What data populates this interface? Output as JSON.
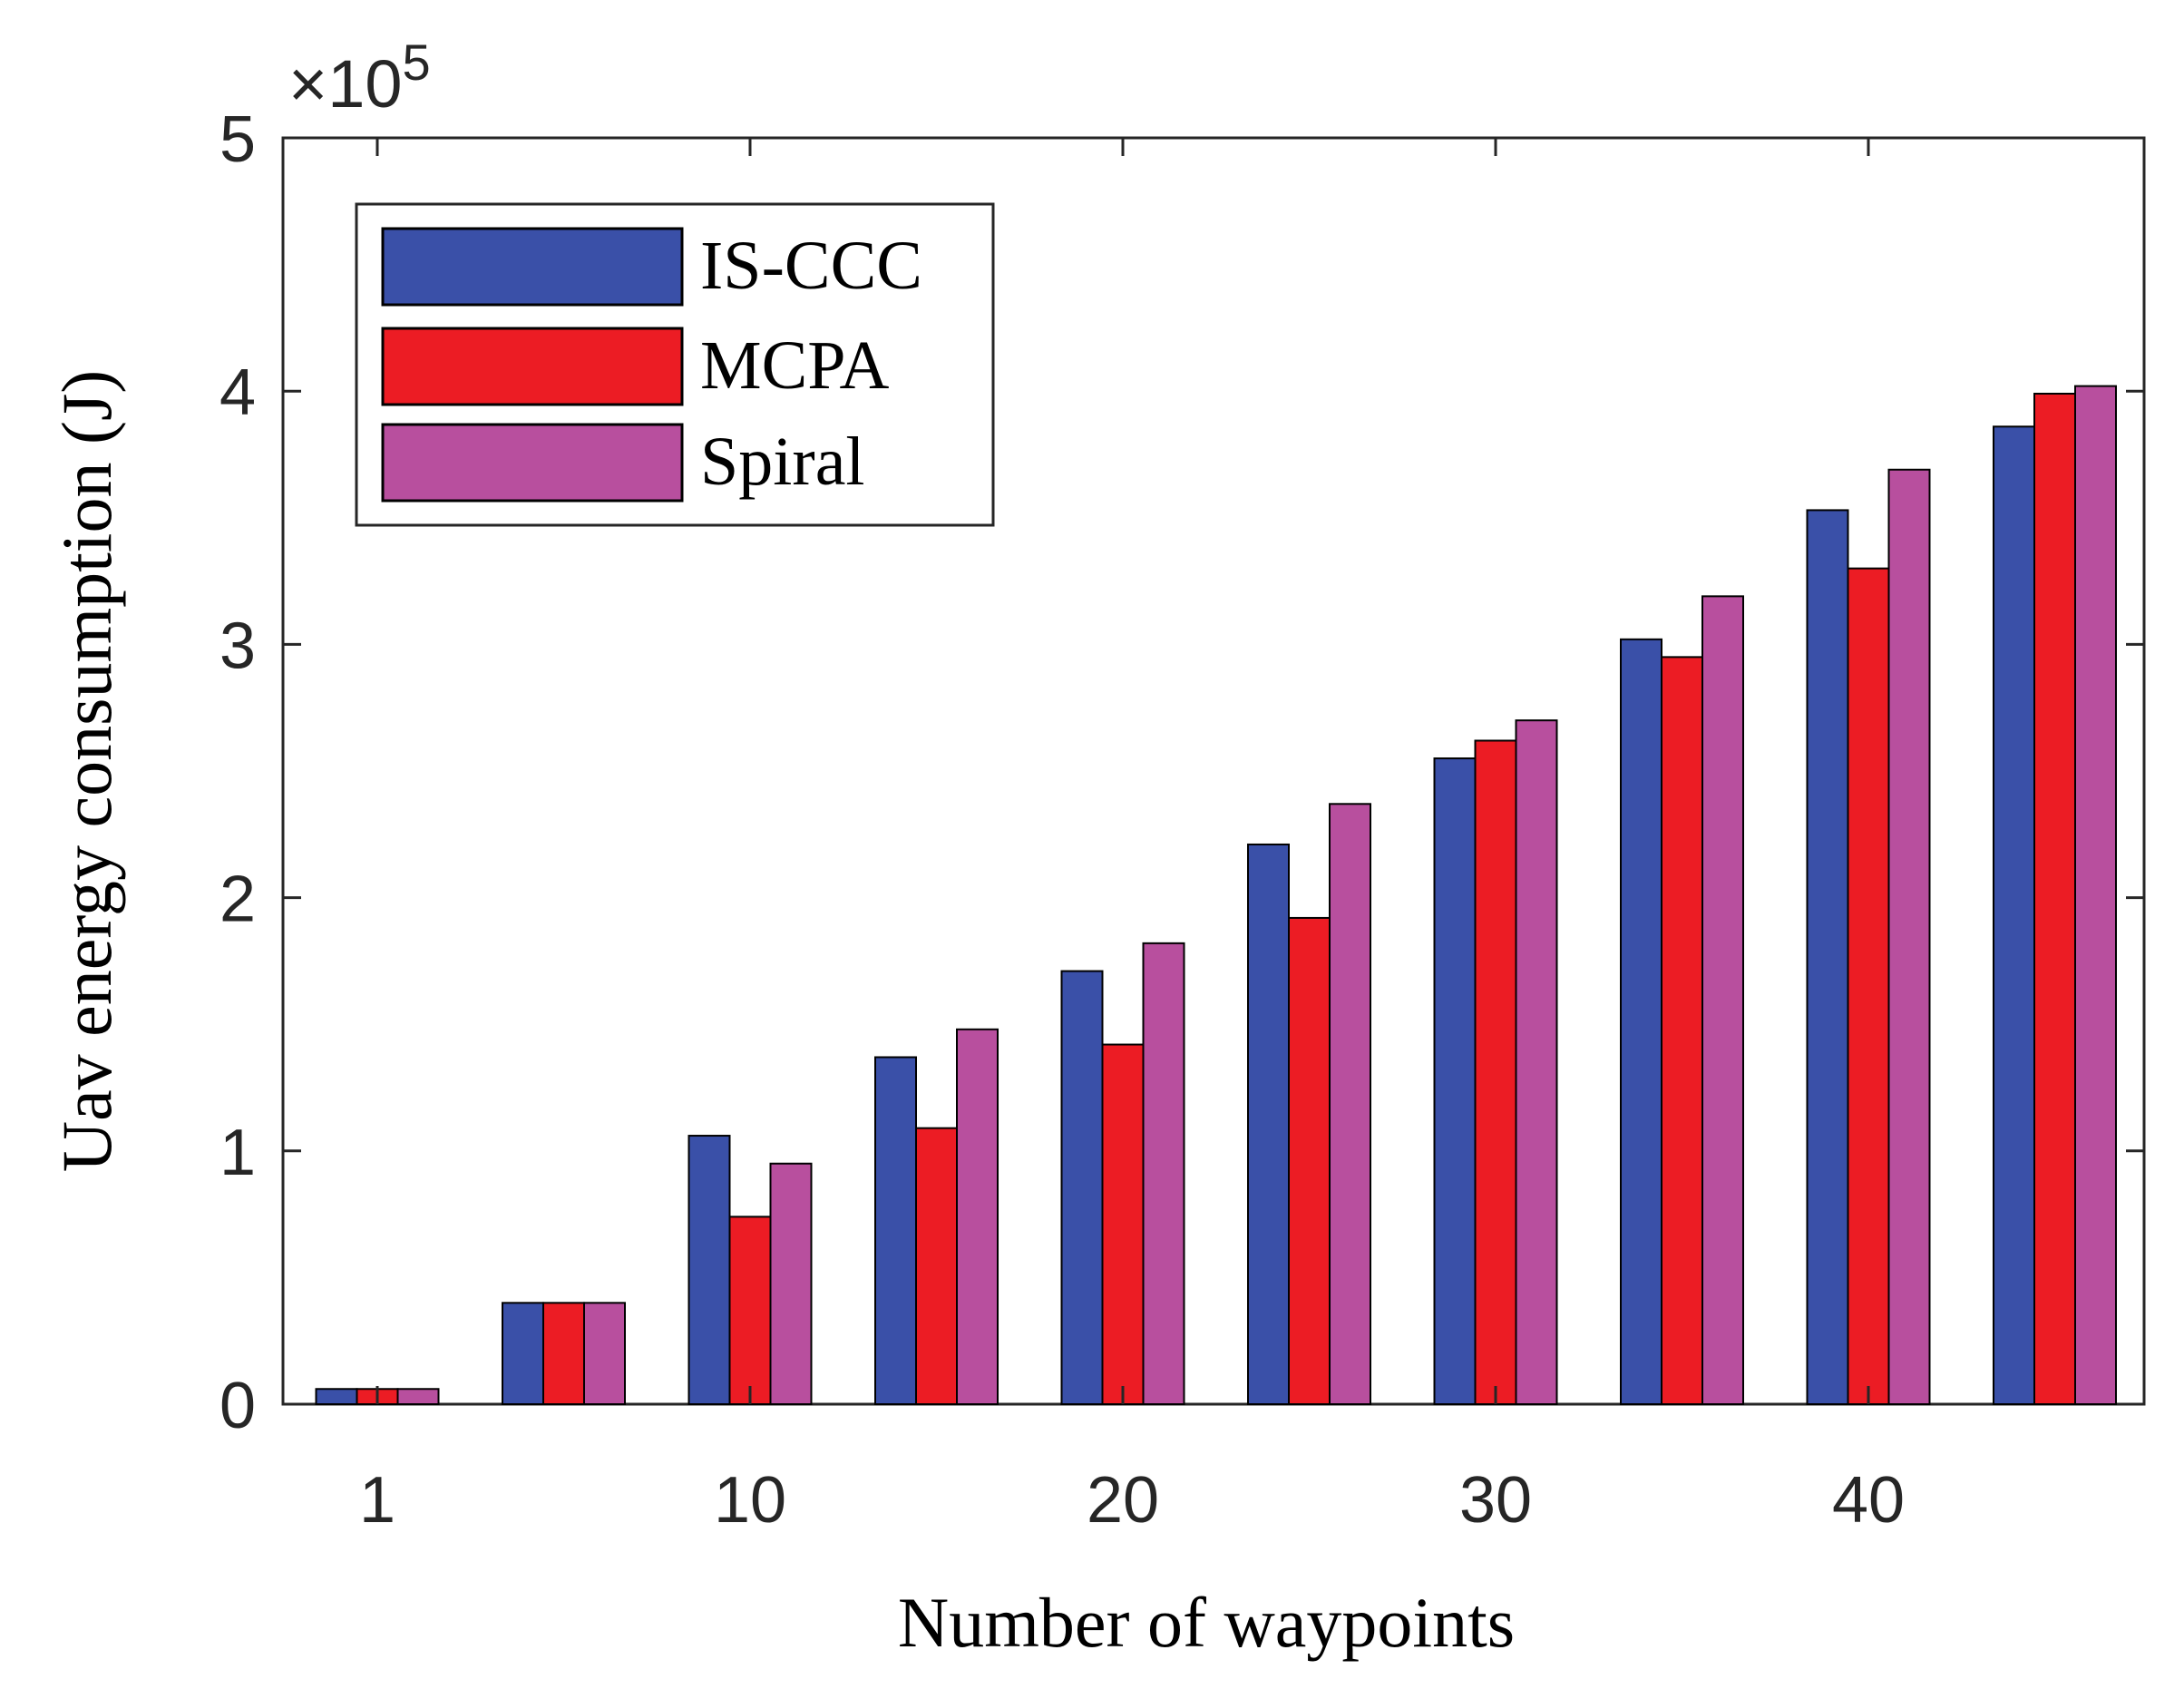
{
  "chart_data": {
    "type": "bar",
    "title": "",
    "xlabel": "Number of waypoints",
    "ylabel": "Uav energy consumption (J)",
    "y_exponent_label": {
      "base": "×10",
      "power": "5"
    },
    "ylim": [
      0,
      5
    ],
    "yticks": [
      0,
      1,
      2,
      3,
      4,
      5
    ],
    "xtick_labels": [
      {
        "label": "1",
        "group": 0
      },
      {
        "label": "10",
        "group": 2
      },
      {
        "label": "20",
        "group": 4
      },
      {
        "label": "30",
        "group": 6
      },
      {
        "label": "40",
        "group": 8
      }
    ],
    "group_count": 10,
    "legend_position": "top-left",
    "series": [
      {
        "name": "IS-CCC",
        "color": "#3a50a8",
        "values": [
          0.06,
          0.4,
          1.06,
          1.37,
          1.71,
          2.21,
          2.55,
          3.02,
          3.53,
          3.86
        ]
      },
      {
        "name": "MCPA",
        "color": "#ec1c24",
        "values": [
          0.06,
          0.4,
          0.74,
          1.09,
          1.42,
          1.92,
          2.62,
          2.95,
          3.3,
          3.99
        ]
      },
      {
        "name": "Spiral",
        "color": "#b84f9e",
        "values": [
          0.06,
          0.4,
          0.95,
          1.48,
          1.82,
          2.37,
          2.7,
          3.19,
          3.69,
          4.02
        ]
      }
    ]
  }
}
